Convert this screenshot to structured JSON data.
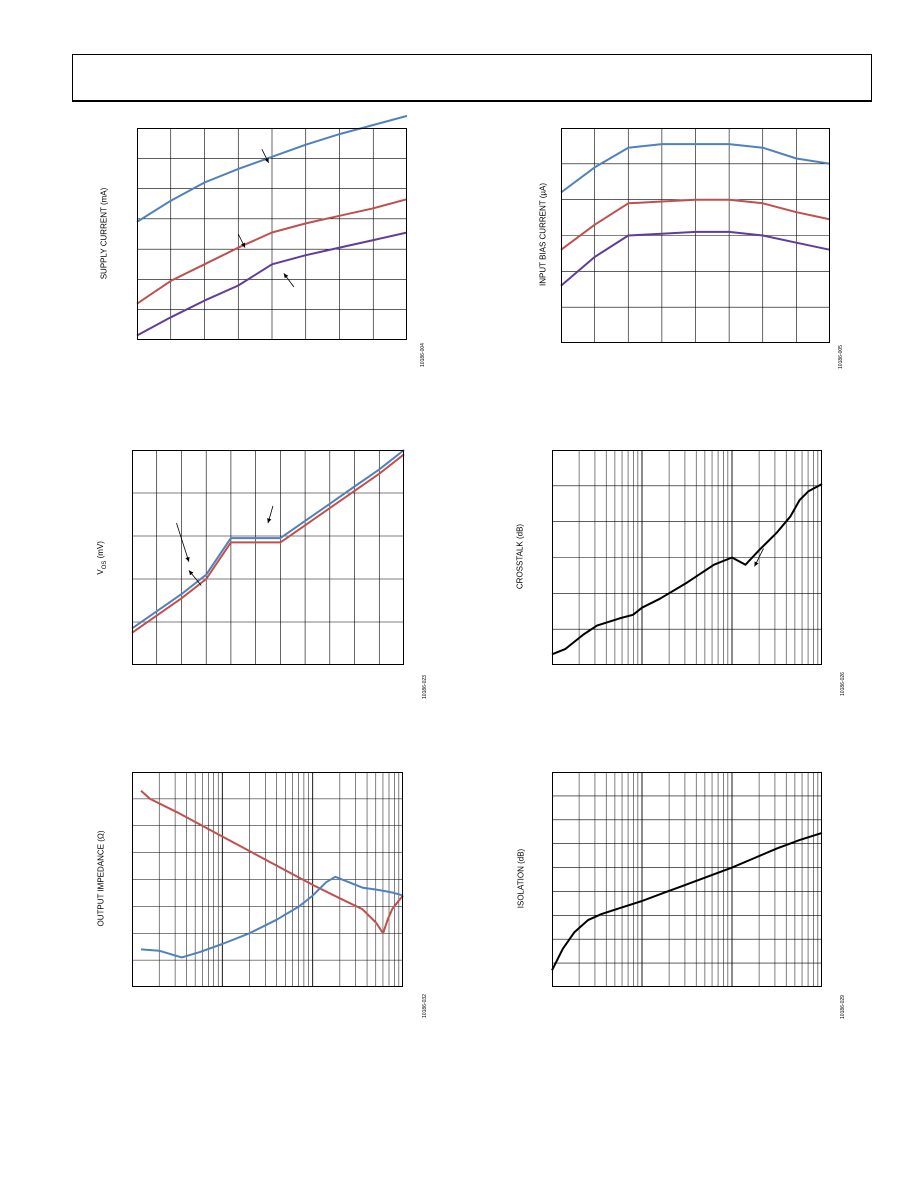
{
  "page": {
    "header": ""
  },
  "chart_data": [
    {
      "id": "supply-current",
      "type": "line",
      "ylabel": "SUPPLY CURRENT (mA)",
      "ref": "10186-004",
      "grid": {
        "cols": 8,
        "rows": 7
      },
      "xlim": [
        0,
        8
      ],
      "ylim": [
        0,
        7
      ],
      "series": [
        {
          "color": "#4f81bd",
          "points": [
            [
              0,
              3.9
            ],
            [
              1,
              4.6
            ],
            [
              2,
              5.2
            ],
            [
              3,
              5.65
            ],
            [
              4,
              6.05
            ],
            [
              5,
              6.45
            ],
            [
              6,
              6.8
            ],
            [
              7,
              7.1
            ],
            [
              8,
              7.4
            ]
          ]
        },
        {
          "color": "#c0504d",
          "points": [
            [
              0,
              1.2
            ],
            [
              1,
              1.95
            ],
            [
              2,
              2.5
            ],
            [
              3,
              3.05
            ],
            [
              4,
              3.55
            ],
            [
              5,
              3.85
            ],
            [
              6,
              4.1
            ],
            [
              7,
              4.35
            ],
            [
              8,
              4.65
            ]
          ]
        },
        {
          "color": "#5f3d99",
          "points": [
            [
              0,
              0.15
            ],
            [
              1,
              0.75
            ],
            [
              2,
              1.3
            ],
            [
              3,
              1.8
            ],
            [
              4,
              2.5
            ],
            [
              5,
              2.8
            ],
            [
              6,
              3.05
            ],
            [
              7,
              3.3
            ],
            [
              8,
              3.55
            ]
          ]
        }
      ],
      "arrows": [
        [
          {
            "x": 3.7,
            "y": 6.3
          },
          {
            "x": 3.9,
            "y": 5.85
          }
        ],
        [
          {
            "x": 3.0,
            "y": 3.5
          },
          {
            "x": 3.2,
            "y": 3.05
          }
        ],
        [
          {
            "x": 4.65,
            "y": 1.75
          },
          {
            "x": 4.35,
            "y": 2.2
          }
        ]
      ]
    },
    {
      "id": "input-bias-current",
      "type": "line",
      "ylabel": "INPUT BIAS CURRENT (µA)",
      "ref": "10186-005",
      "grid": {
        "cols": 8,
        "rows": 6
      },
      "xlim": [
        0,
        8
      ],
      "ylim": [
        0,
        6
      ],
      "series": [
        {
          "color": "#4f81bd",
          "points": [
            [
              0,
              4.2
            ],
            [
              1,
              4.9
            ],
            [
              2,
              5.45
            ],
            [
              3,
              5.55
            ],
            [
              4,
              5.55
            ],
            [
              5,
              5.55
            ],
            [
              6,
              5.45
            ],
            [
              7,
              5.15
            ],
            [
              8,
              5.0
            ]
          ]
        },
        {
          "color": "#c0504d",
          "points": [
            [
              0,
              2.6
            ],
            [
              1,
              3.3
            ],
            [
              2,
              3.9
            ],
            [
              3,
              3.95
            ],
            [
              4,
              4.0
            ],
            [
              5,
              4.0
            ],
            [
              6,
              3.9
            ],
            [
              7,
              3.65
            ],
            [
              8,
              3.45
            ]
          ]
        },
        {
          "color": "#5f3d99",
          "points": [
            [
              0,
              1.6
            ],
            [
              1,
              2.4
            ],
            [
              2,
              3.0
            ],
            [
              3,
              3.05
            ],
            [
              4,
              3.1
            ],
            [
              5,
              3.1
            ],
            [
              6,
              3.0
            ],
            [
              7,
              2.8
            ],
            [
              8,
              2.6
            ]
          ]
        }
      ],
      "arrows": []
    },
    {
      "id": "vos",
      "type": "line",
      "ylabel": "VOS (mV)",
      "ylabel_main": "V",
      "ylabel_sub": "OS",
      "ylabel_unit": " (mV)",
      "ref": "10186-023",
      "grid": {
        "cols": 11,
        "rows": 5
      },
      "xlim": [
        0,
        11
      ],
      "ylim": [
        0,
        5
      ],
      "series": [
        {
          "color": "#4f81bd",
          "points": [
            [
              0,
              0.85
            ],
            [
              1,
              1.25
            ],
            [
              2,
              1.65
            ],
            [
              3,
              2.1
            ],
            [
              4,
              2.95
            ],
            [
              5,
              2.95
            ],
            [
              6,
              2.95
            ],
            [
              7,
              3.35
            ],
            [
              8,
              3.75
            ],
            [
              9,
              4.15
            ],
            [
              10,
              4.55
            ],
            [
              11,
              5.0
            ]
          ]
        },
        {
          "color": "#c0504d",
          "points": [
            [
              0,
              0.75
            ],
            [
              1,
              1.15
            ],
            [
              2,
              1.55
            ],
            [
              3,
              2.0
            ],
            [
              4,
              2.85
            ],
            [
              5,
              2.85
            ],
            [
              6,
              2.85
            ],
            [
              7,
              3.25
            ],
            [
              8,
              3.65
            ],
            [
              9,
              4.05
            ],
            [
              10,
              4.45
            ],
            [
              11,
              4.9
            ]
          ]
        }
      ],
      "arrows": [
        [
          {
            "x": 1.8,
            "y": 3.3
          },
          {
            "x": 2.3,
            "y": 2.4
          }
        ],
        [
          {
            "x": 2.8,
            "y": 1.85
          },
          {
            "x": 2.3,
            "y": 2.2
          }
        ],
        [
          {
            "x": 5.7,
            "y": 3.7
          },
          {
            "x": 5.5,
            "y": 3.3
          }
        ]
      ]
    },
    {
      "id": "crosstalk",
      "type": "line",
      "ylabel": "CROSSTALK (dB)",
      "ref": "10186-026",
      "grid": {
        "decades": 3,
        "rows": 6
      },
      "xlim": [
        0,
        3
      ],
      "ylim": [
        0,
        6
      ],
      "series": [
        {
          "color": "#000000",
          "points": [
            [
              0,
              0.3
            ],
            [
              0.15,
              0.45
            ],
            [
              0.35,
              0.85
            ],
            [
              0.5,
              1.1
            ],
            [
              0.75,
              1.3
            ],
            [
              0.9,
              1.4
            ],
            [
              1.0,
              1.6
            ],
            [
              1.2,
              1.85
            ],
            [
              1.5,
              2.3
            ],
            [
              1.8,
              2.8
            ],
            [
              2.0,
              3.0
            ],
            [
              2.15,
              2.8
            ],
            [
              2.3,
              3.2
            ],
            [
              2.5,
              3.7
            ],
            [
              2.65,
              4.15
            ],
            [
              2.75,
              4.6
            ],
            [
              2.85,
              4.85
            ],
            [
              3.0,
              5.05
            ]
          ]
        }
      ],
      "arrows": [
        [
          {
            "x": 2.35,
            "y": 3.25
          },
          {
            "x": 2.25,
            "y": 2.75
          }
        ]
      ]
    },
    {
      "id": "output-impedance",
      "type": "line",
      "ylabel": "OUTPUT IMPEDANCE (Ω)",
      "ref": "10186-032",
      "grid": {
        "decades": 3,
        "rows": 8
      },
      "xlim": [
        0,
        3
      ],
      "ylim": [
        0,
        8
      ],
      "series": [
        {
          "color": "#c0504d",
          "points": [
            [
              0.1,
              7.3
            ],
            [
              0.2,
              7.0
            ],
            [
              0.5,
              6.5
            ],
            [
              1.0,
              5.6
            ],
            [
              1.5,
              4.7
            ],
            [
              2.0,
              3.8
            ],
            [
              2.3,
              3.3
            ],
            [
              2.55,
              2.9
            ],
            [
              2.7,
              2.4
            ],
            [
              2.78,
              2.0
            ],
            [
              2.83,
              2.5
            ],
            [
              2.88,
              2.9
            ],
            [
              2.95,
              3.2
            ],
            [
              3.0,
              3.4
            ]
          ]
        },
        {
          "color": "#4f81bd",
          "points": [
            [
              0.1,
              1.4
            ],
            [
              0.3,
              1.35
            ],
            [
              0.55,
              1.1
            ],
            [
              0.75,
              1.3
            ],
            [
              1.0,
              1.6
            ],
            [
              1.3,
              2.0
            ],
            [
              1.6,
              2.5
            ],
            [
              1.85,
              3.0
            ],
            [
              2.0,
              3.4
            ],
            [
              2.15,
              3.9
            ],
            [
              2.25,
              4.1
            ],
            [
              2.4,
              3.9
            ],
            [
              2.55,
              3.7
            ],
            [
              2.75,
              3.6
            ],
            [
              2.9,
              3.5
            ],
            [
              3.0,
              3.4
            ]
          ]
        }
      ],
      "arrows": []
    },
    {
      "id": "isolation",
      "type": "line",
      "ylabel": "ISOLATION (dB)",
      "ref": "10186-029",
      "grid": {
        "decades": 3,
        "rows": 9
      },
      "xlim": [
        0,
        3
      ],
      "ylim": [
        0,
        9
      ],
      "series": [
        {
          "color": "#000000",
          "points": [
            [
              0,
              0.7
            ],
            [
              0.12,
              1.6
            ],
            [
              0.25,
              2.3
            ],
            [
              0.4,
              2.8
            ],
            [
              0.55,
              3.05
            ],
            [
              0.75,
              3.3
            ],
            [
              1.0,
              3.6
            ],
            [
              1.25,
              3.95
            ],
            [
              1.5,
              4.3
            ],
            [
              1.75,
              4.65
            ],
            [
              2.0,
              5.0
            ],
            [
              2.25,
              5.4
            ],
            [
              2.5,
              5.8
            ],
            [
              2.75,
              6.15
            ],
            [
              3.0,
              6.45
            ]
          ]
        }
      ],
      "arrows": []
    }
  ]
}
